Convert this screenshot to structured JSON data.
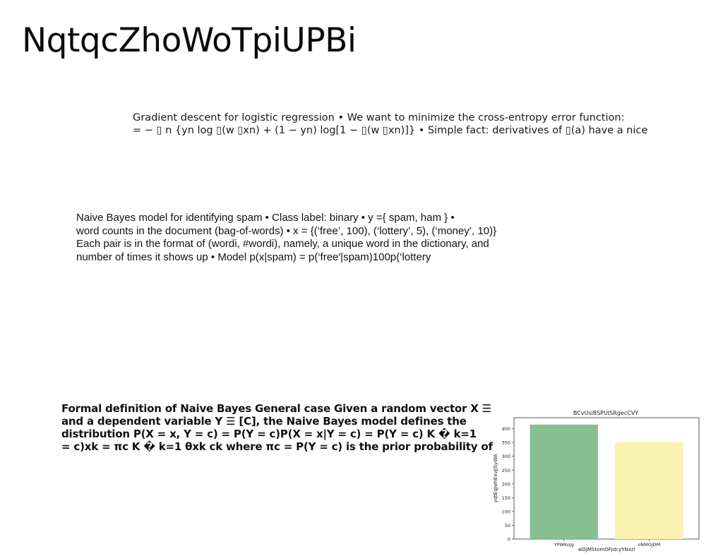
{
  "page": {
    "title": "NqtqcZhoWoTpiUPBi"
  },
  "paragraphs": {
    "gradient": {
      "lines": [
        "Gradient descent for logistic regression • We want to minimize the cross-entropy error function:",
        "= − ▯ n {yn log ▯(w ▯xn) + (1 − yn) log[1 − ▯(w ▯xn)]} • Simple fact: derivatives of ▯(a) have a nice"
      ]
    },
    "naive_bayes": {
      "lines": [
        "Naive Bayes model for identifying spam • Class label: binary • y ={ spam, ham } •",
        "word counts in the document (bag-of-words) • x = {(‘free’, 100), (‘lottery’, 5), (‘money’, 10)}",
        "Each pair is in the format of (wordi, #wordi), namely, a unique word in the dictionary, and",
        "number of times it shows up • Model p(x|spam) = p(‘free′|spam)100p(‘lottery"
      ]
    },
    "formal": {
      "lines": [
        "Formal definition of Naive Bayes General case Given a random vector X ☰",
        "and a dependent variable Y ☰ [C], the Naive Bayes model defines the",
        "distribution P(X = x, Y = c) = P(Y = c)P(X = x|Y = c) = P(Y = c) K � k=1",
        "= c)xk = πc K � k=1 θxk ck where πc = P(Y = c) is the prior probability of"
      ]
    }
  },
  "chart_data": {
    "type": "bar",
    "title": "BCvUsiBSPUISRgecCVY",
    "xlabel": "wOJMStomOFjdcyYNxzl",
    "ylabel": "yqtEqJwhExvJjSyWA",
    "categories": [
      "YPWKoJg",
      "oNMOjDM"
    ],
    "values": [
      415,
      352
    ],
    "colors": [
      "#87bf91",
      "#fbf1b1"
    ],
    "ylim": [
      0,
      440
    ],
    "yticks": [
      0,
      50,
      100,
      150,
      200,
      250,
      300,
      350,
      400
    ],
    "grid": false
  }
}
